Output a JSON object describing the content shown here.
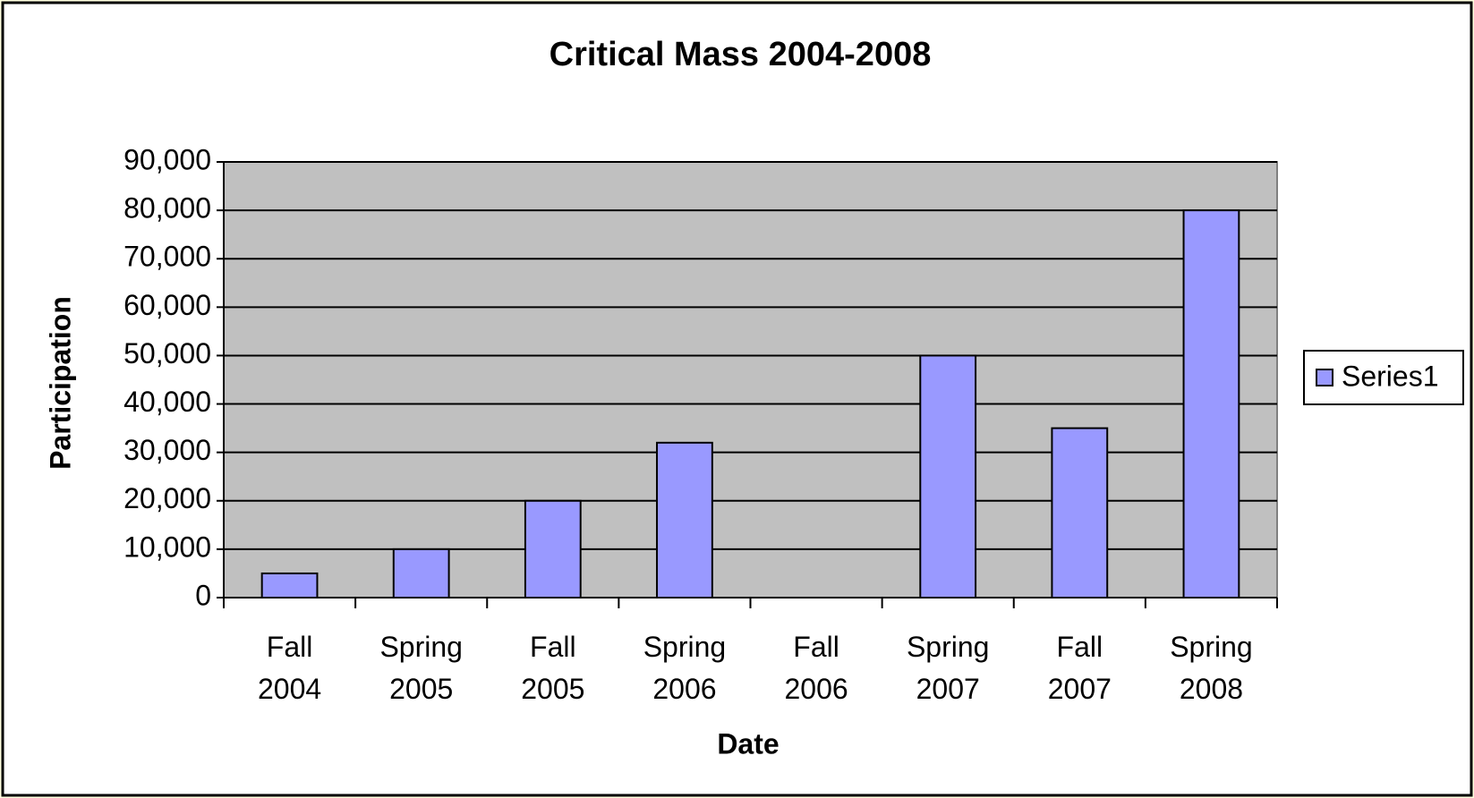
{
  "chart_data": {
    "type": "bar",
    "title": "Critical Mass 2004-2008",
    "x_label": "Date",
    "y_label": "Participation",
    "categories": [
      "Fall 2004",
      "Spring 2005",
      "Fall 2005",
      "Spring 2006",
      "Fall 2006",
      "Spring 2007",
      "Fall 2007",
      "Spring 2008"
    ],
    "series": [
      {
        "name": "Series1",
        "color": "#9999ff",
        "values": [
          5000,
          10000,
          20000,
          32000,
          null,
          50000,
          35000,
          80000
        ]
      }
    ],
    "ylim": [
      0,
      90000
    ],
    "yticks": [
      0,
      {
        "value": 10000,
        "label": "10,000"
      },
      {
        "value": 20000,
        "label": "20,000"
      },
      {
        "value": 30000,
        "label": "30,000"
      },
      {
        "value": 40000,
        "label": "40,000"
      },
      {
        "value": 50000,
        "label": "50,000"
      },
      {
        "value": 60000,
        "label": "60,000"
      },
      {
        "value": 70000,
        "label": "70,000"
      },
      {
        "value": 80000,
        "label": "80,000"
      },
      {
        "value": 90000,
        "label": "90,000"
      }
    ],
    "grid": true,
    "legend": "right"
  }
}
